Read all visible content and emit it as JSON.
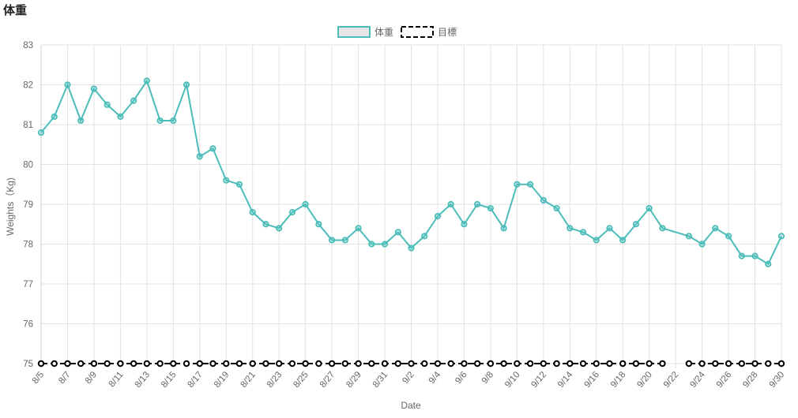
{
  "page": {
    "title": "体重"
  },
  "colors": {
    "weight": "#4bbdb9",
    "target": "#000000",
    "grid": "#e2e2e2"
  },
  "chart_data": {
    "type": "line",
    "title": "体重",
    "xlabel": "Date",
    "ylabel": "Weights（Kg)",
    "ylim": [
      75,
      83
    ],
    "y_ticks": [
      75,
      76,
      77,
      78,
      79,
      80,
      81,
      82,
      83
    ],
    "grid": true,
    "legend_position": "top-center",
    "x": [
      "8/5",
      "8/6",
      "8/7",
      "8/8",
      "8/9",
      "8/10",
      "8/11",
      "8/12",
      "8/13",
      "8/14",
      "8/15",
      "8/16",
      "8/17",
      "8/18",
      "8/19",
      "8/20",
      "8/21",
      "8/22",
      "8/23",
      "8/24",
      "8/25",
      "8/26",
      "8/27",
      "8/28",
      "8/29",
      "8/30",
      "8/31",
      "9/1",
      "9/2",
      "9/3",
      "9/4",
      "9/5",
      "9/6",
      "9/7",
      "9/8",
      "9/9",
      "9/10",
      "9/11",
      "9/12",
      "9/13",
      "9/14",
      "9/15",
      "9/16",
      "9/17",
      "9/18",
      "9/19",
      "9/20",
      "9/21",
      "9/22",
      "9/23",
      "9/24",
      "9/25",
      "9/26",
      "9/27",
      "9/28",
      "9/29",
      "9/30"
    ],
    "x_tick_labels": [
      "8/5",
      "8/7",
      "8/9",
      "8/11",
      "8/13",
      "8/15",
      "8/17",
      "8/19",
      "8/21",
      "8/23",
      "8/25",
      "8/27",
      "8/29",
      "8/31",
      "9/2",
      "9/4",
      "9/6",
      "9/8",
      "9/10",
      "9/12",
      "9/14",
      "9/16",
      "9/18",
      "9/20",
      "9/22",
      "9/24",
      "9/26",
      "9/28",
      "9/30"
    ],
    "series": [
      {
        "name": "体重",
        "color": "#4bbdb9",
        "values": [
          80.8,
          81.2,
          82.0,
          81.1,
          81.9,
          81.5,
          81.2,
          81.6,
          82.1,
          81.1,
          81.1,
          82.0,
          80.2,
          80.4,
          79.6,
          79.5,
          78.8,
          78.5,
          78.4,
          78.8,
          79.0,
          78.5,
          78.1,
          78.1,
          78.4,
          78.0,
          78.0,
          78.3,
          77.9,
          78.2,
          78.7,
          79.0,
          78.5,
          79.0,
          78.9,
          78.4,
          79.5,
          79.5,
          79.1,
          78.9,
          78.4,
          78.3,
          78.1,
          78.4,
          78.1,
          78.5,
          78.9,
          78.4,
          null,
          78.2,
          78.0,
          78.4,
          78.2,
          77.7,
          77.7,
          77.5,
          78.2
        ]
      },
      {
        "name": "目標",
        "color": "#000000",
        "values": [
          75,
          75,
          75,
          75,
          75,
          75,
          75,
          75,
          75,
          75,
          75,
          75,
          75,
          75,
          75,
          75,
          75,
          75,
          75,
          75,
          75,
          75,
          75,
          75,
          75,
          75,
          75,
          75,
          75,
          75,
          75,
          75,
          75,
          75,
          75,
          75,
          75,
          75,
          75,
          75,
          75,
          75,
          75,
          75,
          75,
          75,
          75,
          75,
          null,
          75,
          75,
          75,
          75,
          75,
          75,
          75,
          75
        ]
      }
    ]
  }
}
